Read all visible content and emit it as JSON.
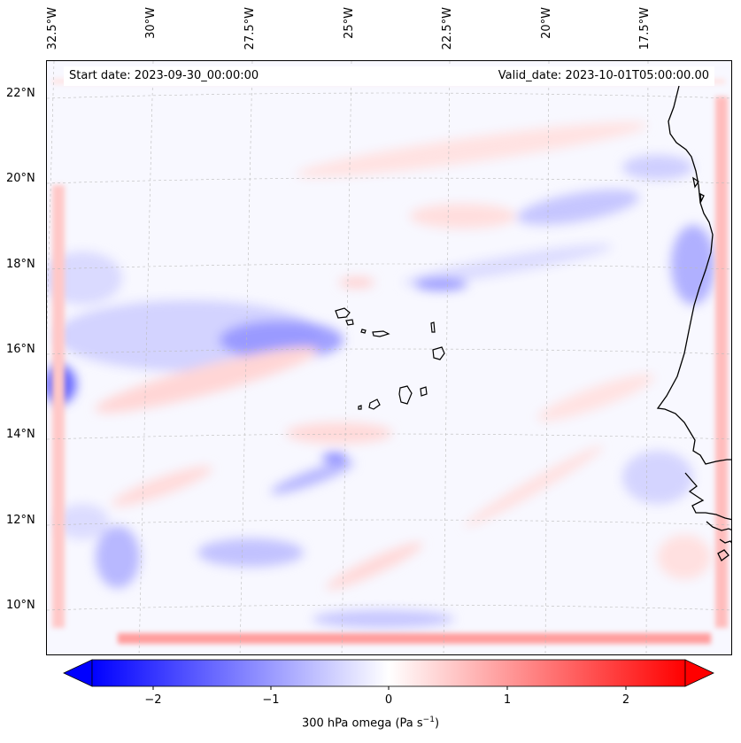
{
  "map": {
    "start_date": "Start date: 2023-09-30_00:00:00",
    "valid_date": "Valid_date: 2023-10-01T05:00:00.00",
    "longitude_labels": [
      "32.5°W",
      "30°W",
      "27.5°W",
      "25°W",
      "22.5°W",
      "20°W",
      "17.5°W"
    ],
    "latitude_labels": [
      "22°N",
      "20°N",
      "18°N",
      "16°N",
      "14°N",
      "12°N",
      "10°N"
    ],
    "gridlines": true,
    "colormap": "bwr",
    "colors": {
      "negative": "#0000ff",
      "zero": "#ffffff",
      "positive": "#ff0000"
    }
  },
  "colorbar": {
    "range": [
      -2.7,
      2.7
    ],
    "ticks": [
      "−2",
      "−1",
      "0",
      "1",
      "2"
    ],
    "label_main": "300 hPa omega (Pa s",
    "label_exp": "−1",
    "label_close": ")",
    "extend": "both"
  }
}
